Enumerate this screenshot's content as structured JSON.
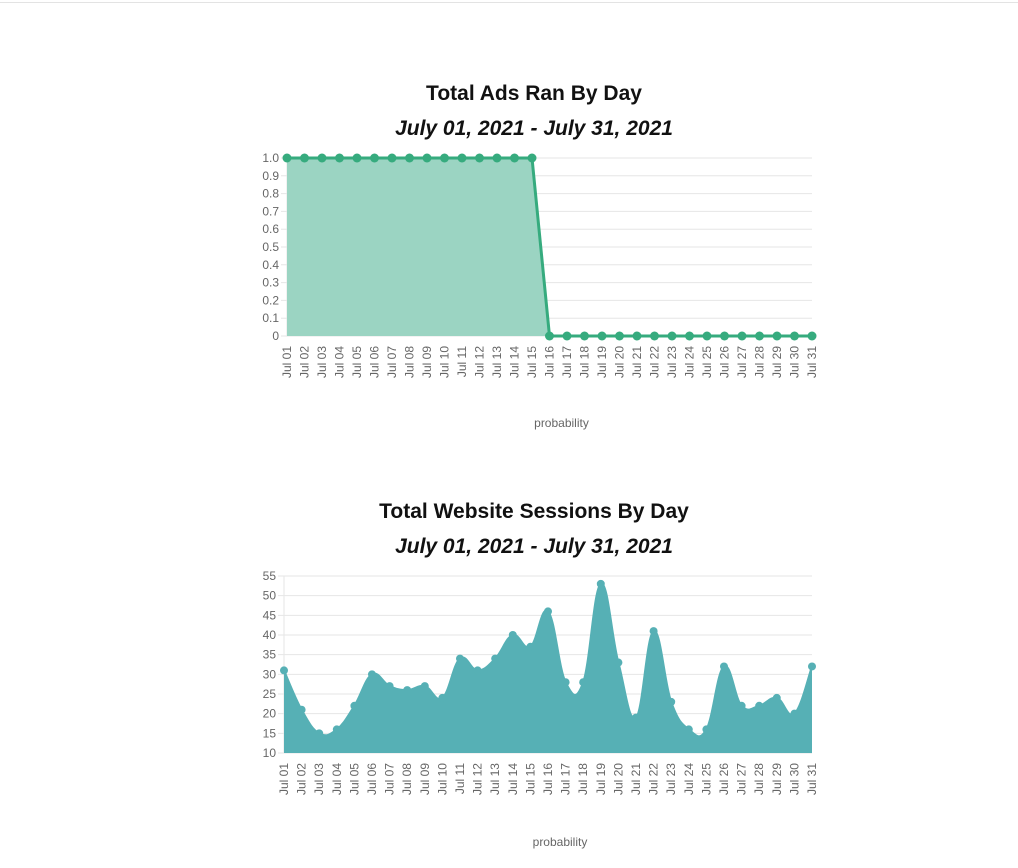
{
  "chart_data": [
    {
      "type": "area",
      "title": "Total Ads Ran By Day",
      "subtitle": "July 01, 2021 - July 31, 2021",
      "xlabel": "probability",
      "ylabel": "",
      "categories": [
        "Jul 01",
        "Jul 02",
        "Jul 03",
        "Jul 04",
        "Jul 05",
        "Jul 06",
        "Jul 07",
        "Jul 08",
        "Jul 09",
        "Jul 10",
        "Jul 11",
        "Jul 12",
        "Jul 13",
        "Jul 14",
        "Jul 15",
        "Jul 16",
        "Jul 17",
        "Jul 18",
        "Jul 19",
        "Jul 20",
        "Jul 21",
        "Jul 22",
        "Jul 23",
        "Jul 24",
        "Jul 25",
        "Jul 26",
        "Jul 27",
        "Jul 28",
        "Jul 29",
        "Jul 30",
        "Jul 31"
      ],
      "values": [
        1,
        1,
        1,
        1,
        1,
        1,
        1,
        1,
        1,
        1,
        1,
        1,
        1,
        1,
        1,
        0,
        0,
        0,
        0,
        0,
        0,
        0,
        0,
        0,
        0,
        0,
        0,
        0,
        0,
        0,
        0
      ],
      "ylim": [
        0,
        1
      ],
      "yticks": [
        "1.0",
        "0.9",
        "0.8",
        "0.7",
        "0.6",
        "0.5",
        "0.4",
        "0.3",
        "0.2",
        "0.1",
        "0"
      ],
      "grid": true,
      "legend": "none",
      "colors": {
        "line": "#36ab7e",
        "fill": "#9bd4c2"
      }
    },
    {
      "type": "area",
      "title": "Total Website Sessions By Day",
      "subtitle": "July 01, 2021 - July 31, 2021",
      "xlabel": "probability",
      "ylabel": "",
      "categories": [
        "Jul 01",
        "Jul 02",
        "Jul 03",
        "Jul 04",
        "Jul 05",
        "Jul 06",
        "Jul 07",
        "Jul 08",
        "Jul 09",
        "Jul 10",
        "Jul 11",
        "Jul 12",
        "Jul 13",
        "Jul 14",
        "Jul 15",
        "Jul 16",
        "Jul 17",
        "Jul 18",
        "Jul 19",
        "Jul 20",
        "Jul 21",
        "Jul 22",
        "Jul 23",
        "Jul 24",
        "Jul 25",
        "Jul 26",
        "Jul 27",
        "Jul 28",
        "Jul 29",
        "Jul 30",
        "Jul 31"
      ],
      "values": [
        31,
        21,
        15,
        16,
        22,
        30,
        27,
        26,
        27,
        24,
        34,
        31,
        34,
        40,
        37,
        46,
        28,
        28,
        53,
        33,
        19,
        41,
        23,
        16,
        16,
        32,
        22,
        22,
        24,
        20,
        32
      ],
      "ylim": [
        10,
        55
      ],
      "yticks": [
        "55",
        "50",
        "45",
        "40",
        "35",
        "30",
        "25",
        "20",
        "15",
        "10"
      ],
      "grid": true,
      "legend": "none",
      "colors": {
        "line": "#56b0b5",
        "fill": "#56b0b5"
      }
    }
  ]
}
